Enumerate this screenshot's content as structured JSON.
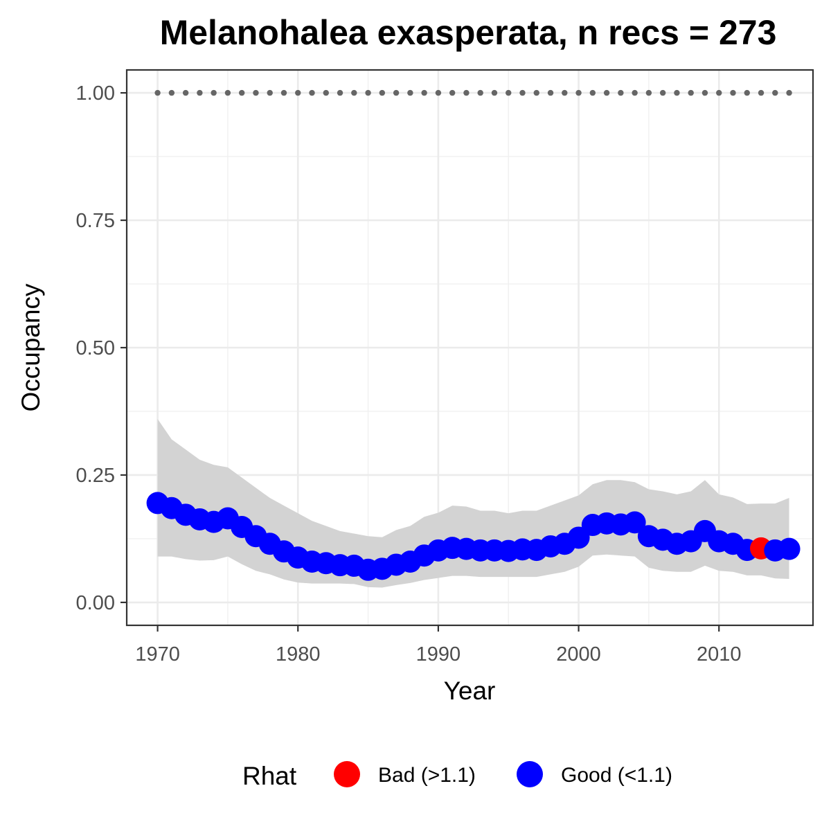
{
  "chart_data": {
    "type": "line",
    "title": "Melanohalea exasperata, n recs = 273",
    "xlabel": "Year",
    "ylabel": "Occupancy",
    "xlim": [
      1967.8,
      2016.7
    ],
    "ylim": [
      -0.045,
      1.045
    ],
    "xticks": [
      1970,
      1980,
      1990,
      2000,
      2010
    ],
    "xtick_labels": [
      "1970",
      "1980",
      "1990",
      "2000",
      "2010"
    ],
    "yticks": [
      0,
      0.25,
      0.5,
      0.75,
      1.0
    ],
    "ytick_labels": [
      "0.00",
      "0.25",
      "0.50",
      "0.75",
      "1.00"
    ],
    "grid": true,
    "legend": {
      "title": "Rhat",
      "position": "bottom",
      "entries": [
        {
          "label": "Bad (>1.1)",
          "color": "#ff0000"
        },
        {
          "label": "Good (<1.1)",
          "color": "#0000ff"
        }
      ]
    },
    "colors": {
      "bad": "#ff0000",
      "good": "#0000ff",
      "ribbon": "#d3d3d3",
      "reference": "#666666"
    },
    "reference_line": {
      "y": 1.0,
      "style": "dotted"
    },
    "x": [
      1970,
      1971,
      1972,
      1973,
      1974,
      1975,
      1976,
      1977,
      1978,
      1979,
      1980,
      1981,
      1982,
      1983,
      1984,
      1985,
      1986,
      1987,
      1988,
      1989,
      1990,
      1991,
      1992,
      1993,
      1994,
      1995,
      1996,
      1997,
      1998,
      1999,
      2000,
      2001,
      2002,
      2003,
      2004,
      2005,
      2006,
      2007,
      2008,
      2009,
      2010,
      2011,
      2012,
      2013,
      2014,
      2015
    ],
    "series": [
      {
        "values": [
          0.195,
          0.185,
          0.172,
          0.163,
          0.158,
          0.165,
          0.148,
          0.13,
          0.115,
          0.1,
          0.088,
          0.08,
          0.077,
          0.073,
          0.072,
          0.064,
          0.066,
          0.074,
          0.08,
          0.092,
          0.102,
          0.107,
          0.105,
          0.102,
          0.102,
          0.101,
          0.104,
          0.103,
          0.11,
          0.115,
          0.127,
          0.152,
          0.155,
          0.153,
          0.157,
          0.13,
          0.123,
          0.115,
          0.12,
          0.14,
          0.12,
          0.115,
          0.103,
          0.106,
          0.102,
          0.105
        ],
        "lower": [
          0.09,
          0.09,
          0.085,
          0.082,
          0.083,
          0.09,
          0.075,
          0.062,
          0.055,
          0.045,
          0.039,
          0.037,
          0.037,
          0.037,
          0.036,
          0.03,
          0.029,
          0.034,
          0.038,
          0.044,
          0.048,
          0.052,
          0.052,
          0.05,
          0.05,
          0.05,
          0.05,
          0.05,
          0.055,
          0.06,
          0.07,
          0.092,
          0.094,
          0.092,
          0.09,
          0.068,
          0.062,
          0.06,
          0.06,
          0.072,
          0.062,
          0.06,
          0.053,
          0.053,
          0.047,
          0.046
        ],
        "upper": [
          0.36,
          0.32,
          0.3,
          0.28,
          0.27,
          0.265,
          0.245,
          0.225,
          0.205,
          0.19,
          0.175,
          0.16,
          0.15,
          0.14,
          0.135,
          0.13,
          0.128,
          0.142,
          0.15,
          0.168,
          0.176,
          0.19,
          0.188,
          0.18,
          0.18,
          0.175,
          0.18,
          0.18,
          0.19,
          0.2,
          0.21,
          0.232,
          0.24,
          0.24,
          0.236,
          0.222,
          0.218,
          0.212,
          0.218,
          0.24,
          0.212,
          0.206,
          0.193,
          0.194,
          0.194,
          0.205
        ],
        "rhat_status": [
          "good",
          "good",
          "good",
          "good",
          "good",
          "good",
          "good",
          "good",
          "good",
          "good",
          "good",
          "good",
          "good",
          "good",
          "good",
          "good",
          "good",
          "good",
          "good",
          "good",
          "good",
          "good",
          "good",
          "good",
          "good",
          "good",
          "good",
          "good",
          "good",
          "good",
          "good",
          "good",
          "good",
          "good",
          "good",
          "good",
          "good",
          "good",
          "good",
          "good",
          "good",
          "good",
          "good",
          "bad",
          "good",
          "good"
        ]
      }
    ]
  }
}
